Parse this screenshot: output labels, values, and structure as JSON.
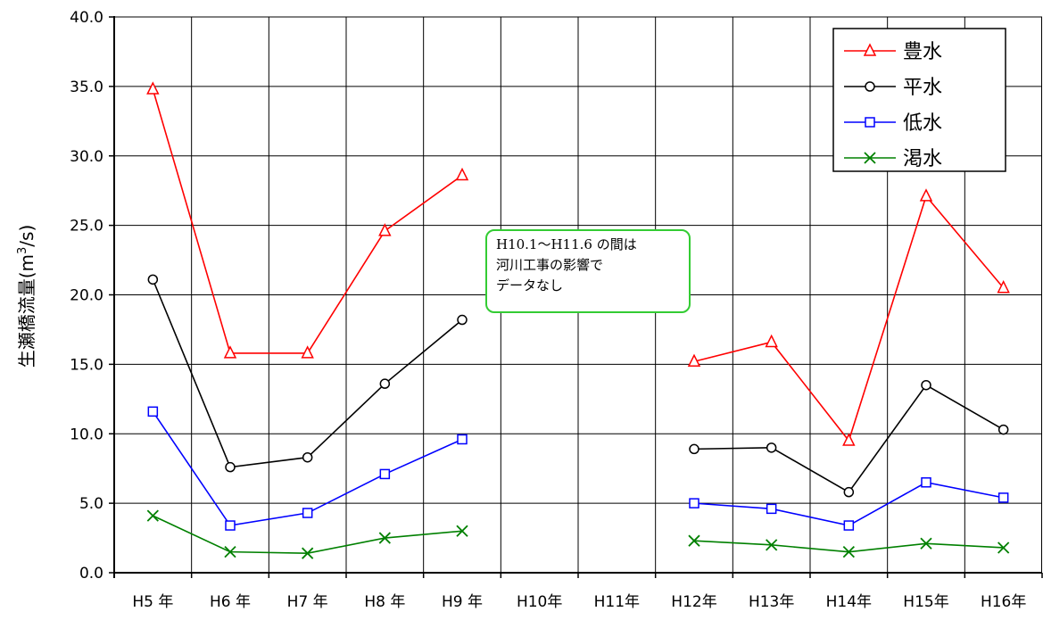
{
  "chart_data": {
    "type": "line",
    "title": "",
    "xlabel": "",
    "ylabel": "生瀬橋流量(m³/s)",
    "ylabel_parts": {
      "pre": "生瀬橋流量(m",
      "sup": "3",
      "post": "/s)"
    },
    "ylim": [
      0,
      40
    ],
    "yticks": [
      "0.0",
      "5.0",
      "10.0",
      "15.0",
      "20.0",
      "25.0",
      "30.0",
      "35.0",
      "40.0"
    ],
    "categories": [
      "H5 年",
      "H6 年",
      "H7 年",
      "H8 年",
      "H9 年",
      "H10年",
      "H11年",
      "H12年",
      "H13年",
      "H14年",
      "H15年",
      "H16年"
    ],
    "grid": true,
    "legend_position": "top-right",
    "series": [
      {
        "name": "豊水",
        "color": "#ff0000",
        "marker": "triangle",
        "values": [
          34.8,
          15.8,
          15.8,
          24.6,
          28.6,
          null,
          null,
          15.2,
          16.6,
          9.5,
          27.1,
          20.5
        ]
      },
      {
        "name": "平水",
        "color": "#000000",
        "marker": "circle",
        "values": [
          21.1,
          7.6,
          8.3,
          13.6,
          18.2,
          null,
          null,
          8.9,
          9.0,
          5.8,
          13.5,
          10.3
        ]
      },
      {
        "name": "低水",
        "color": "#0000ff",
        "marker": "square",
        "values": [
          11.6,
          3.4,
          4.3,
          7.1,
          9.6,
          null,
          null,
          5.0,
          4.6,
          3.4,
          6.5,
          5.4
        ]
      },
      {
        "name": "渇水",
        "color": "#008000",
        "marker": "x",
        "values": [
          4.1,
          1.5,
          1.4,
          2.5,
          3.0,
          null,
          null,
          2.3,
          2.0,
          1.5,
          2.1,
          1.8
        ]
      }
    ],
    "annotations": [
      {
        "lines": [
          "H10.1～H11.6 の間は",
          "河川工事の影響で",
          "データなし"
        ],
        "border_color": "#33cc33"
      }
    ]
  }
}
